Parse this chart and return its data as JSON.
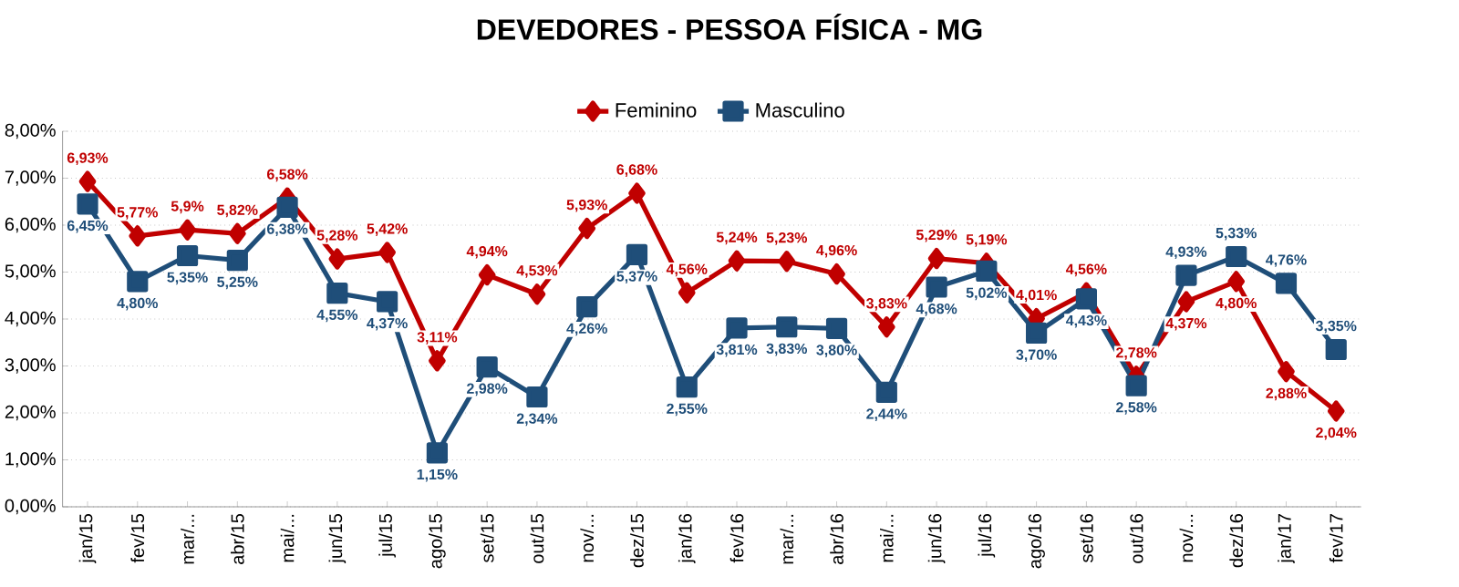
{
  "chart_data": {
    "type": "line",
    "title": "DEVEDORES - PESSOA FÍSICA - MG",
    "categories": [
      "jan/15",
      "fev/15",
      "mar/...",
      "abr/15",
      "mai/...",
      "jun/15",
      "jul/15",
      "ago/15",
      "set/15",
      "out/15",
      "nov/...",
      "dez/15",
      "jan/16",
      "fev/16",
      "mar/...",
      "abr/16",
      "mai/...",
      "jun/16",
      "jul/16",
      "ago/16",
      "set/16",
      "out/16",
      "nov/...",
      "dez/16",
      "jan/17",
      "fev/17"
    ],
    "series": [
      {
        "name": "Feminino",
        "color": "#c00000",
        "marker": "diamond",
        "values": [
          6.93,
          5.77,
          5.9,
          5.82,
          6.58,
          5.28,
          5.42,
          3.11,
          4.94,
          4.53,
          5.93,
          6.68,
          4.56,
          5.24,
          5.23,
          4.96,
          3.83,
          5.29,
          5.19,
          4.01,
          4.56,
          2.78,
          4.37,
          4.8,
          2.88,
          2.04
        ],
        "value_labels": [
          "6,93%",
          "5,77%",
          "5,9%",
          "5,82%",
          "6,58%",
          "5,28%",
          "5,42%",
          "3,11%",
          "4,94%",
          "4,53%",
          "5,93%",
          "6,68%",
          "4,56%",
          "5,24%",
          "5,23%",
          "4,96%",
          "3,83%",
          "5,29%",
          "5,19%",
          "4,01%",
          "4,56%",
          "2,78%",
          "4,37%",
          "4,80%",
          "2,88%",
          "2,04%"
        ]
      },
      {
        "name": "Masculino",
        "color": "#1f4e79",
        "marker": "square",
        "values": [
          6.45,
          4.8,
          5.35,
          5.25,
          6.38,
          4.55,
          4.37,
          1.15,
          2.98,
          2.34,
          4.26,
          5.37,
          2.55,
          3.81,
          3.83,
          3.8,
          2.44,
          4.68,
          5.02,
          3.7,
          4.43,
          2.58,
          4.93,
          5.33,
          4.76,
          3.35
        ],
        "value_labels": [
          "6,45%",
          "4,80%",
          "5,35%",
          "5,25%",
          "6,38%",
          "4,55%",
          "4,37%",
          "1,15%",
          "2,98%",
          "2,34%",
          "4,26%",
          "5,37%",
          "2,55%",
          "3,81%",
          "3,83%",
          "3,80%",
          "2,44%",
          "4,68%",
          "5,02%",
          "3,70%",
          "4,43%",
          "2,58%",
          "4,93%",
          "5,33%",
          "4,76%",
          "3,35%"
        ]
      }
    ],
    "ylim": [
      0,
      8
    ],
    "yticks": [
      {
        "value": 0,
        "label": "0,00%"
      },
      {
        "value": 1,
        "label": "1,00%"
      },
      {
        "value": 2,
        "label": "2,00%"
      },
      {
        "value": 3,
        "label": "3,00%"
      },
      {
        "value": 4,
        "label": "4,00%"
      },
      {
        "value": 5,
        "label": "5,00%"
      },
      {
        "value": 6,
        "label": "6,00%"
      },
      {
        "value": 7,
        "label": "7,00%"
      },
      {
        "value": 8,
        "label": "8,00%"
      }
    ],
    "grid": "y",
    "legend": "top",
    "line_style": "solid"
  }
}
